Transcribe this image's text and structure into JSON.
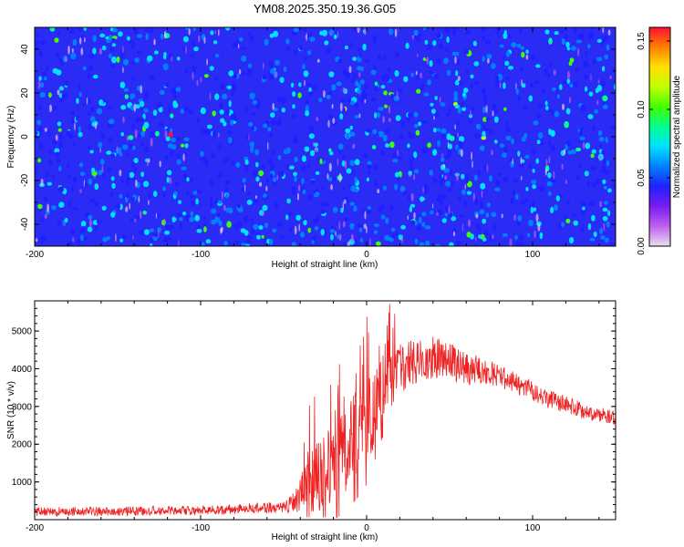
{
  "title": "YM08.2025.350.19.36.G05",
  "chart_data": [
    {
      "type": "heatmap",
      "title": "YM08.2025.350.19.36.G05",
      "xlabel": "Height of straight line (km)",
      "ylabel": "Frequency (Hz)",
      "xlim": [
        -200,
        150
      ],
      "ylim": [
        -50,
        50
      ],
      "xticks": [
        -200,
        -100,
        0,
        100
      ],
      "yticks": [
        -40,
        -20,
        0,
        20,
        40
      ],
      "colorbar": {
        "label": "Normalized spectral amplitude",
        "range": [
          0.0,
          0.16
        ],
        "ticks": [
          "0.00",
          "0.05",
          "0.10",
          "0.15"
        ],
        "colors": [
          "#e8e0f0",
          "#c060f0",
          "#7a1cf0",
          "#2020ff",
          "#0080ff",
          "#00e0ff",
          "#00ff90",
          "#40ff00",
          "#c0ff00",
          "#ffe000",
          "#ff8000",
          "#ff1030"
        ]
      },
      "background_level": 0.02,
      "speckle_levels": [
        0.04,
        0.05,
        0.06,
        0.07
      ],
      "speckle_density": 0.085
    },
    {
      "type": "line",
      "xlabel": "Height of straight line (km)",
      "ylabel": "SNR (10 * v/v)",
      "xlim": [
        -200,
        150
      ],
      "ylim": [
        0,
        5800
      ],
      "xticks": [
        -200,
        -100,
        0,
        100
      ],
      "yticks": [
        1000,
        2000,
        3000,
        4000,
        5000
      ],
      "series": [
        {
          "name": "SNR",
          "color": "#ee2222",
          "envelope_x": [
            -200,
            -100,
            -50,
            -42,
            -35,
            -20,
            -10,
            0,
            10,
            20,
            30,
            40,
            50,
            60,
            70,
            80,
            90,
            100,
            110,
            120,
            130,
            140,
            150
          ],
          "envelope_mean": [
            210,
            240,
            330,
            500,
            1000,
            1500,
            2000,
            2600,
            3500,
            4000,
            4200,
            4300,
            4200,
            4000,
            3950,
            3800,
            3600,
            3400,
            3200,
            3050,
            2900,
            2800,
            2700
          ],
          "envelope_spread": [
            120,
            120,
            150,
            350,
            900,
            1100,
            1200,
            1200,
            900,
            650,
            600,
            550,
            500,
            420,
            360,
            320,
            280,
            260,
            240,
            230,
            220,
            200,
            200
          ],
          "samples": 1400
        }
      ]
    }
  ]
}
